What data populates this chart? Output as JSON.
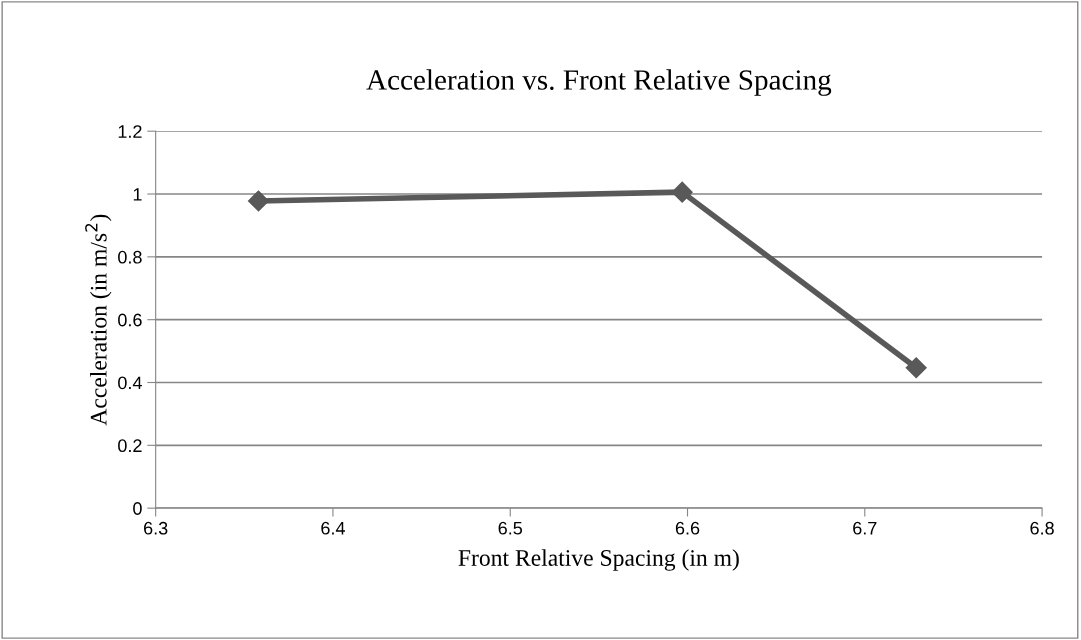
{
  "chart_data": {
    "type": "line",
    "title": "Acceleration vs. Front Relative Spacing",
    "xlabel": "Front Relative Spacing (in m)",
    "ylabel": "Acceleration (in m/s$^{2}$)",
    "x": [
      6.358,
      6.597,
      6.729
    ],
    "series": [
      {
        "color": "#595959",
        "values": [
          0.978,
          1.006,
          0.447
        ]
      }
    ],
    "xlim": [
      6.3,
      6.8
    ],
    "xticks": [
      6.3,
      6.4,
      6.5,
      6.6,
      6.7,
      6.8
    ],
    "ylim": [
      0,
      1.2
    ],
    "yticks": [
      0,
      0.2,
      0.4,
      0.6,
      0.8,
      1,
      1.2
    ],
    "grid": "y",
    "marker": "diamond",
    "line_style": "solid",
    "legend": false
  }
}
